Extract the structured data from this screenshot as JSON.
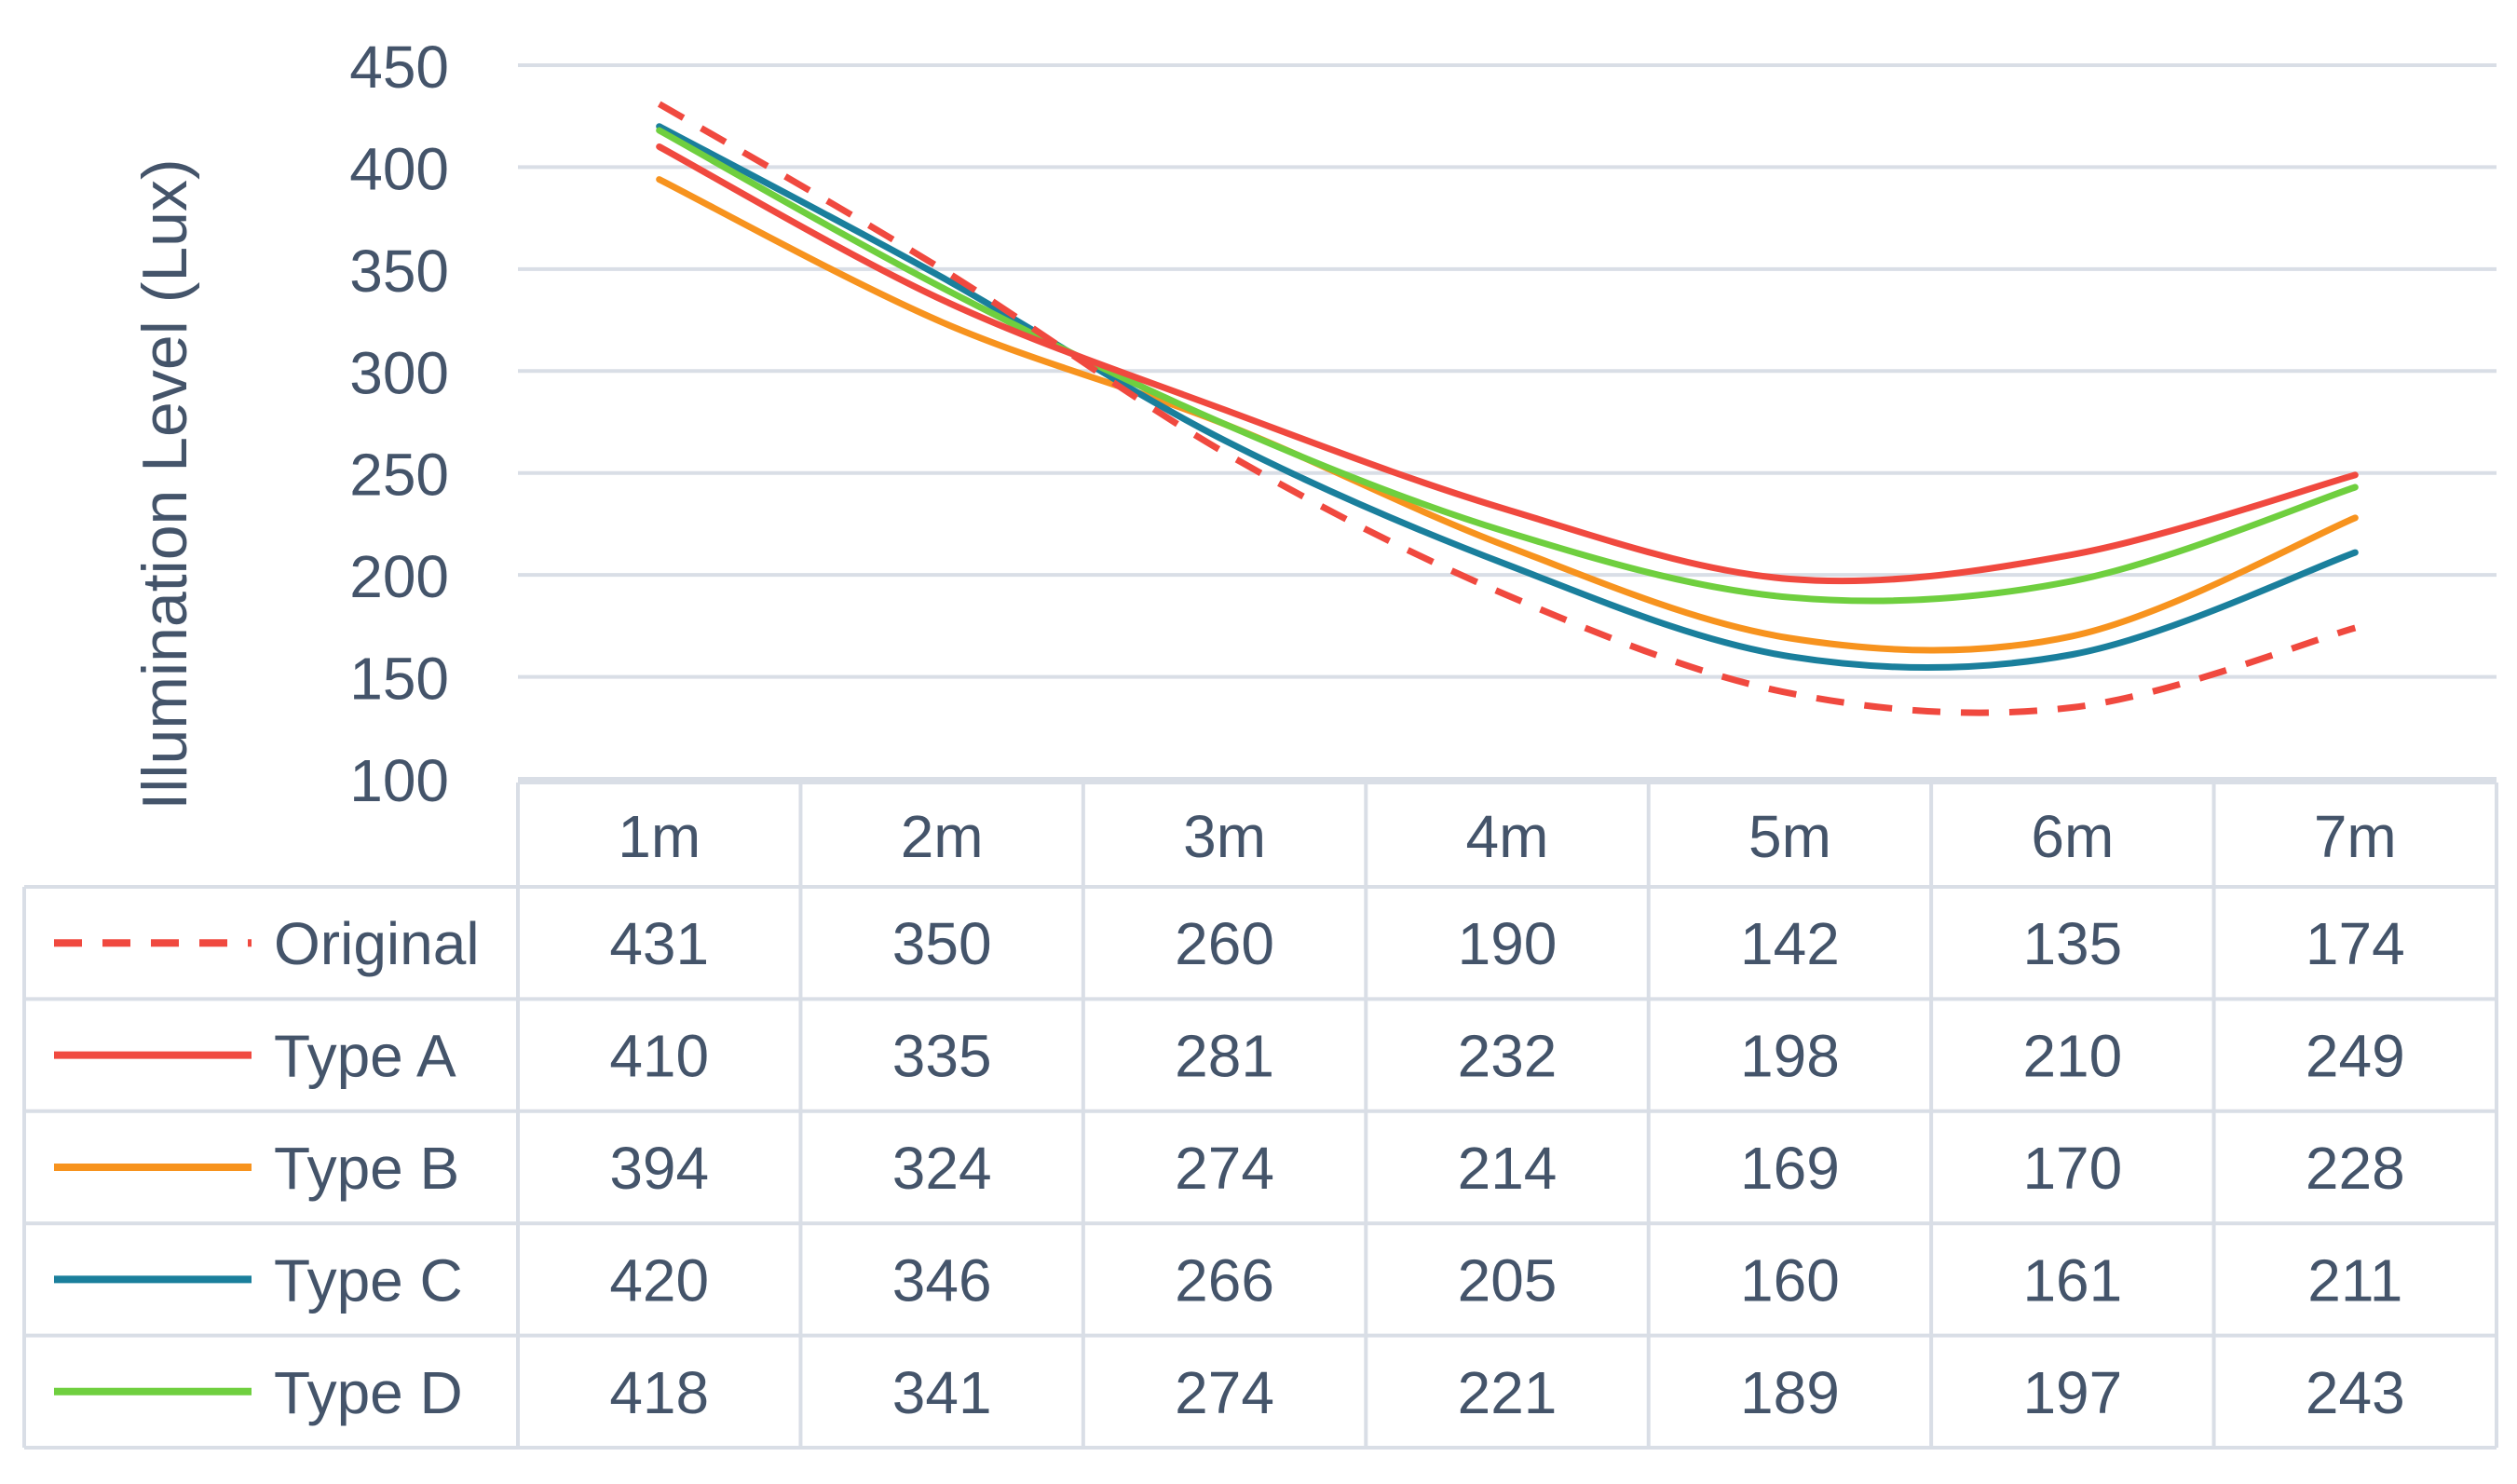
{
  "chart_data": {
    "type": "line",
    "title": "",
    "xlabel": "",
    "ylabel": "Illumination Level (Lux)",
    "categories": [
      "1m",
      "2m",
      "3m",
      "4m",
      "5m",
      "6m",
      "7m"
    ],
    "ylim": [
      100,
      450
    ],
    "yticks": [
      100,
      150,
      200,
      250,
      300,
      350,
      400,
      450
    ],
    "grid": true,
    "legend": "data-table",
    "series": [
      {
        "name": "Original",
        "color": "#f0493f",
        "dash": "dashed",
        "values": [
          431,
          350,
          260,
          190,
          142,
          135,
          174
        ]
      },
      {
        "name": "Type A",
        "color": "#f0493f",
        "dash": "solid",
        "values": [
          410,
          335,
          281,
          232,
          198,
          210,
          249
        ]
      },
      {
        "name": "Type B",
        "color": "#f7931e",
        "dash": "solid",
        "values": [
          394,
          324,
          274,
          214,
          169,
          170,
          228
        ]
      },
      {
        "name": "Type C",
        "color": "#1a7f9c",
        "dash": "solid",
        "values": [
          420,
          346,
          266,
          205,
          160,
          161,
          211
        ]
      },
      {
        "name": "Type D",
        "color": "#6fcf3f",
        "dash": "solid",
        "values": [
          418,
          341,
          274,
          221,
          189,
          197,
          243
        ]
      }
    ]
  }
}
